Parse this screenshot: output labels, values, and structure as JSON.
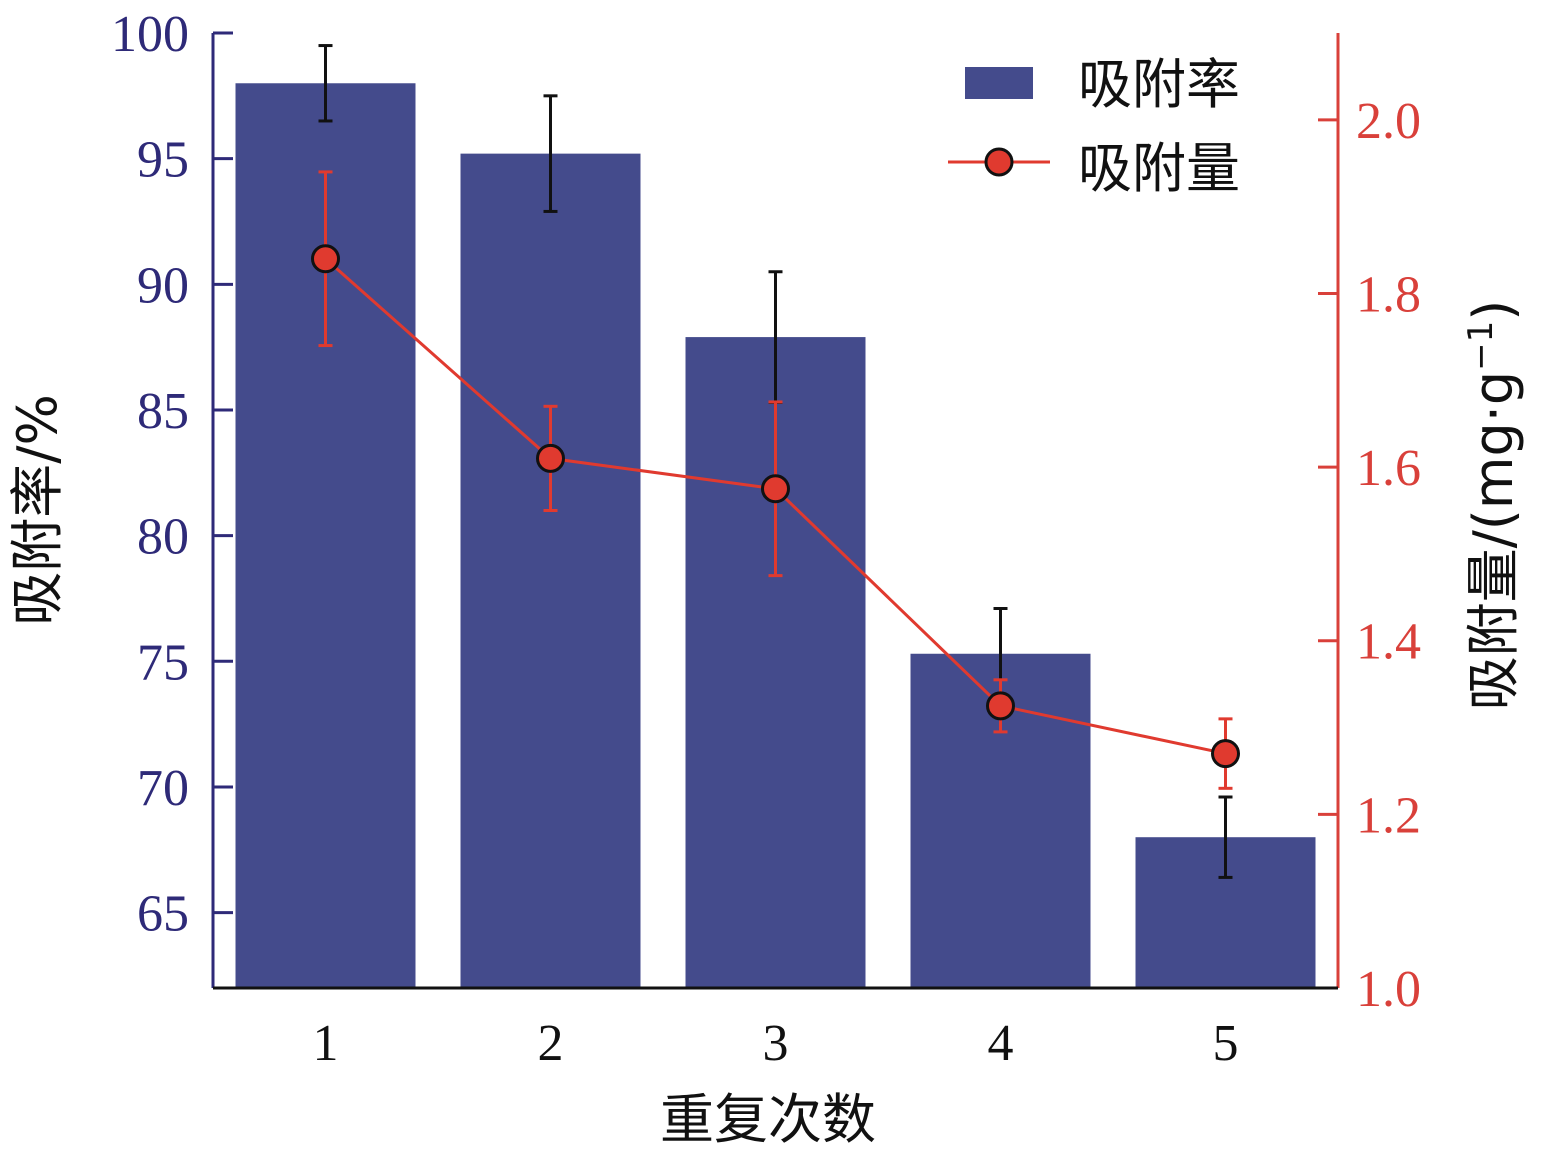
{
  "chart_data": {
    "type": "bar",
    "categories": [
      "1",
      "2",
      "3",
      "4",
      "5"
    ],
    "xlabel": "重复次数",
    "y_left": {
      "label": "吸附率/%",
      "ylim": [
        62,
        100
      ],
      "ticks": [
        65,
        70,
        75,
        80,
        85,
        90,
        95,
        100
      ],
      "color": "#2e2a78"
    },
    "y_right": {
      "label_main": "吸附量/(mg·g",
      "label_sup": "−1",
      "label_close": ")",
      "ylim": [
        1.0,
        2.1
      ],
      "ticks": [
        "1.0",
        "1.2",
        "1.4",
        "1.6",
        "1.8",
        "2.0"
      ],
      "color": "#d9403a"
    },
    "series": [
      {
        "name": "吸附率",
        "kind": "bar",
        "axis": "left",
        "color": "#444b8c",
        "values": [
          98.0,
          95.2,
          87.9,
          75.3,
          68.0
        ],
        "errors": [
          1.5,
          2.3,
          2.6,
          1.8,
          1.6
        ]
      },
      {
        "name": "吸附量",
        "kind": "line",
        "axis": "right",
        "color": "#e03a2f",
        "values": [
          1.84,
          1.61,
          1.575,
          1.325,
          1.27
        ],
        "errors": [
          0.1,
          0.06,
          0.1,
          0.03,
          0.04
        ]
      }
    ],
    "legend": {
      "position": "top-right"
    },
    "grid": false
  }
}
